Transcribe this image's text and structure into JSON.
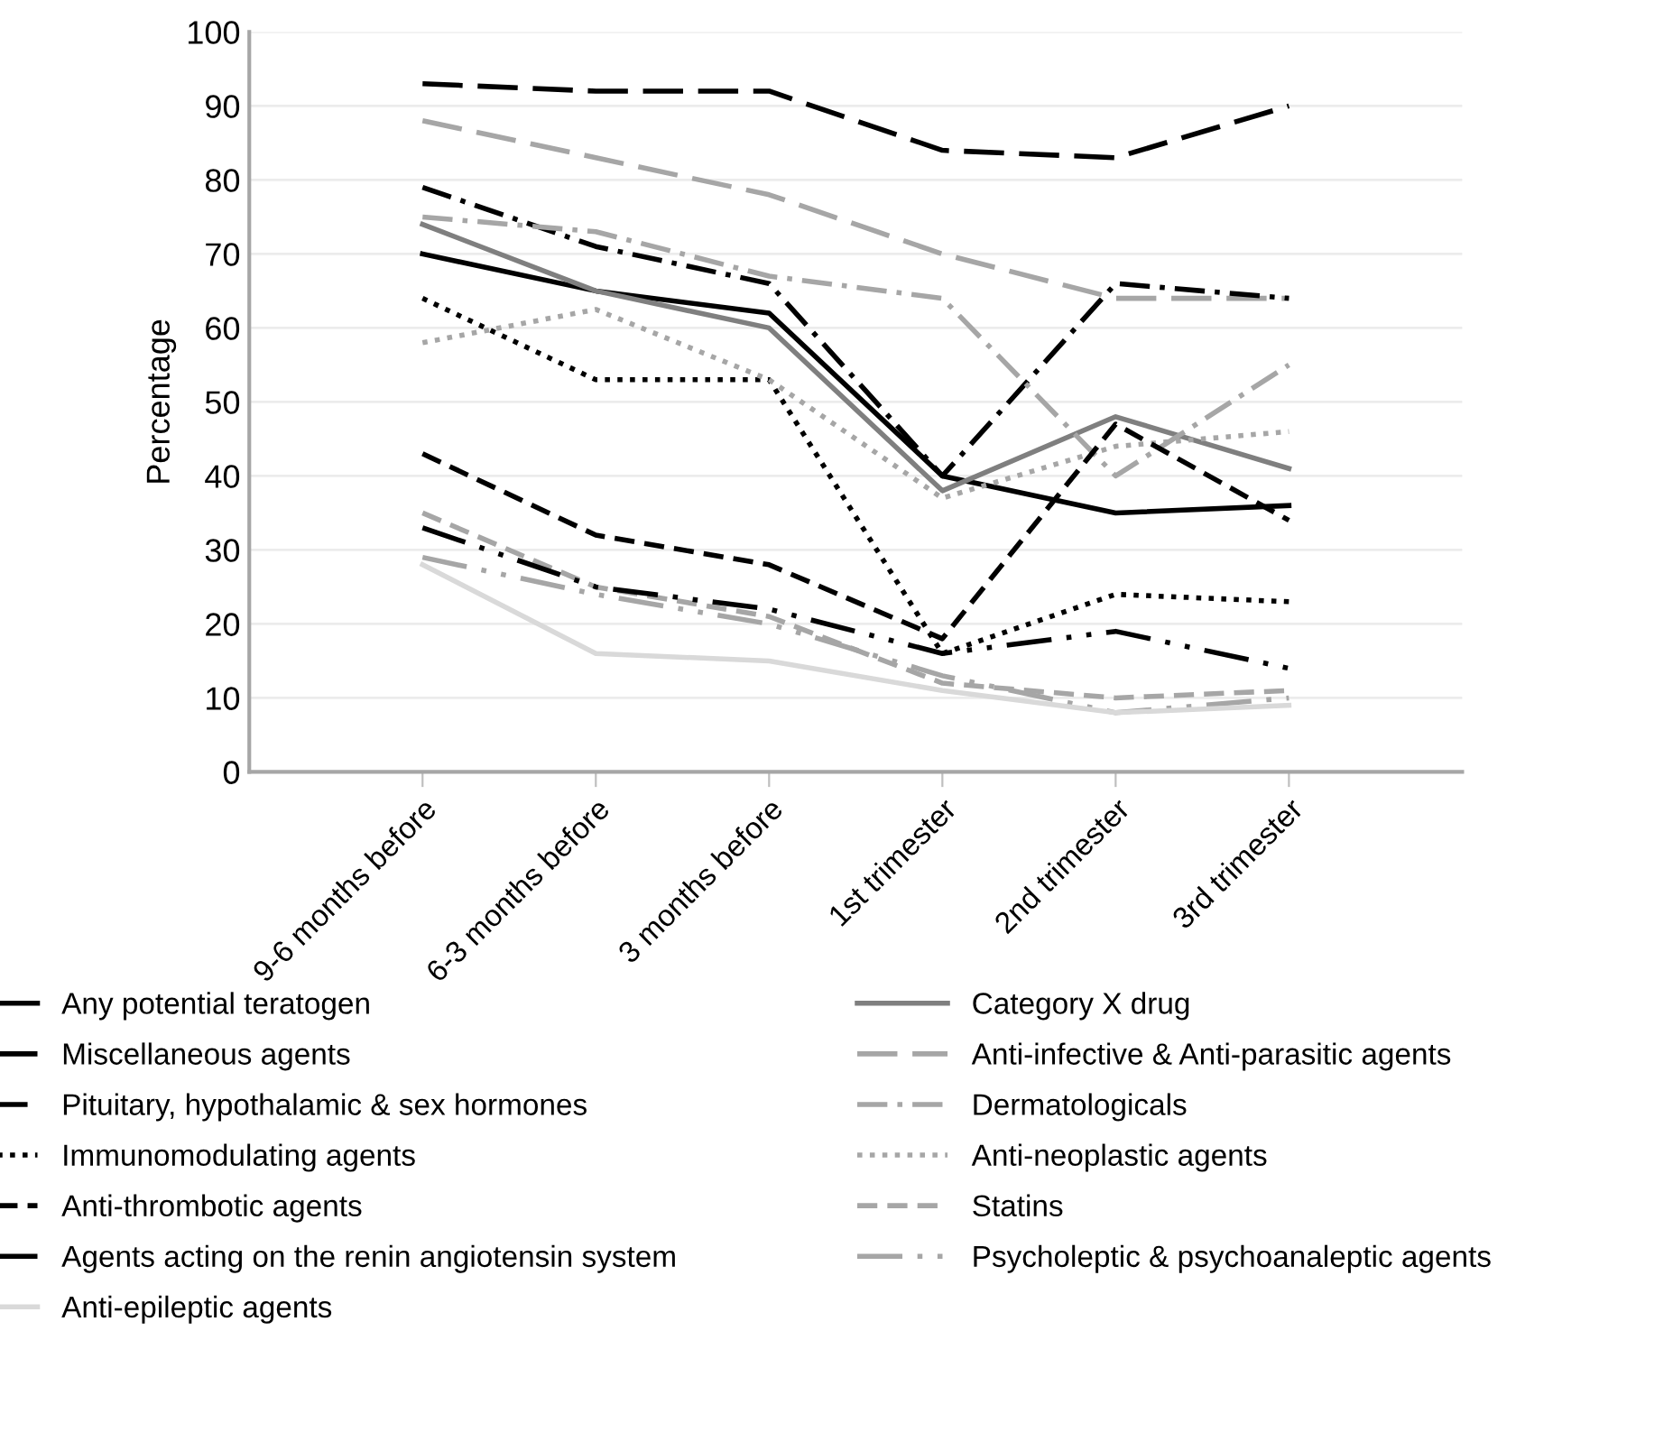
{
  "chart_data": {
    "type": "line",
    "ylabel": "Percentage",
    "categories": [
      "9-6 months before",
      "6-3 months before",
      "3 months before",
      "1st trimester",
      "2nd trimester",
      "3rd trimester"
    ],
    "ylim": [
      0,
      100
    ],
    "yticks": [
      0,
      10,
      20,
      30,
      40,
      50,
      60,
      70,
      80,
      90,
      100
    ],
    "grid": "y",
    "legend": "bottom",
    "marker": "none",
    "series": [
      {
        "name": "Any potential teratogen",
        "color": "#000000",
        "line_style": "solid",
        "values": [
          70,
          65,
          62,
          40,
          35,
          36
        ]
      },
      {
        "name": "Category X drug",
        "color": "#7f7f7f",
        "line_style": "solid",
        "values": [
          74,
          65,
          60,
          38,
          48,
          41
        ]
      },
      {
        "name": "Miscellaneous agents",
        "color": "#000000",
        "line_style": "long_dashed",
        "values": [
          93,
          92,
          92,
          84,
          83,
          90
        ]
      },
      {
        "name": "Anti-infective & Anti-parasitic agents",
        "color": "#a6a6a6",
        "line_style": "long_dashed",
        "values": [
          88,
          83,
          78,
          70,
          64,
          64
        ]
      },
      {
        "name": "Pituitary, hypothalamic & sex hormones",
        "color": "#000000",
        "line_style": "dashdot",
        "values": [
          79,
          71,
          66,
          40,
          66,
          64
        ]
      },
      {
        "name": "Dermatologicals",
        "color": "#a6a6a6",
        "line_style": "dashdot",
        "values": [
          75,
          73,
          67,
          64,
          40,
          55
        ]
      },
      {
        "name": "Immunomodulating agents",
        "color": "#000000",
        "line_style": "dotted",
        "values": [
          64,
          53,
          53,
          16,
          24,
          23
        ]
      },
      {
        "name": "Anti-neoplastic agents",
        "color": "#a6a6a6",
        "line_style": "dotted",
        "values": [
          58,
          62.5,
          53,
          37,
          44,
          46
        ]
      },
      {
        "name": "Anti-thrombotic agents",
        "color": "#000000",
        "line_style": "dashed",
        "values": [
          43,
          32,
          28,
          18,
          47,
          34
        ]
      },
      {
        "name": "Statins",
        "color": "#a6a6a6",
        "line_style": "dashed",
        "values": [
          35,
          25,
          21,
          12,
          10,
          11
        ]
      },
      {
        "name": "Agents acting on the renin angiotensin system",
        "color": "#000000",
        "line_style": "long_dashdot",
        "values": [
          33,
          25,
          22,
          16,
          19,
          14
        ]
      },
      {
        "name": "Psycholeptic & psychoanaleptic agents",
        "color": "#a6a6a6",
        "line_style": "long_dashdot",
        "values": [
          29,
          24,
          20,
          13,
          8,
          10
        ]
      },
      {
        "name": "Anti-epileptic agents",
        "color": "#d9d9d9",
        "line_style": "solid",
        "values": [
          28,
          16,
          15,
          11,
          8,
          9
        ]
      }
    ]
  }
}
